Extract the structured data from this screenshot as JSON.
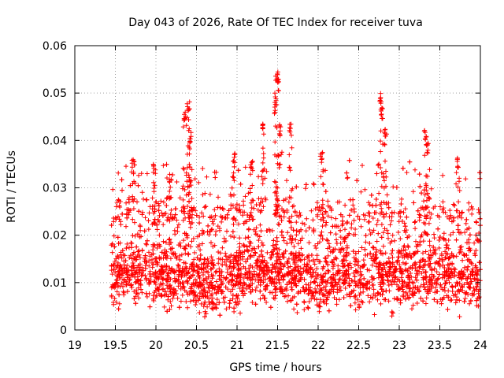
{
  "chart_data": {
    "type": "scatter",
    "title": "Day 043 of 2026, Rate Of TEC Index for receiver tuva",
    "xlabel": "GPS time / hours",
    "ylabel": "ROTI / TECUs",
    "xlim": [
      19,
      24
    ],
    "ylim": [
      0,
      0.06
    ],
    "x_ticks": [
      "19",
      "19.5",
      "20",
      "20.5",
      "21",
      "21.5",
      "22",
      "22.5",
      "23",
      "23.5",
      "24"
    ],
    "y_ticks": [
      "0",
      "0.01",
      "0.02",
      "0.03",
      "0.04",
      "0.05",
      "0.06"
    ],
    "grid": true,
    "marker": "+",
    "color": "#ff0000",
    "x_start": 19.45,
    "x_end": 24.0,
    "baseline_level": [
      [
        19.45,
        0.011
      ],
      [
        19.6,
        0.012
      ],
      [
        19.8,
        0.012
      ],
      [
        20.0,
        0.011
      ],
      [
        20.2,
        0.011
      ],
      [
        20.4,
        0.011
      ],
      [
        20.6,
        0.01
      ],
      [
        20.8,
        0.01
      ],
      [
        21.0,
        0.011
      ],
      [
        21.2,
        0.012
      ],
      [
        21.4,
        0.012
      ],
      [
        21.6,
        0.012
      ],
      [
        21.8,
        0.01
      ],
      [
        22.0,
        0.01
      ],
      [
        22.2,
        0.011
      ],
      [
        22.4,
        0.012
      ],
      [
        22.6,
        0.011
      ],
      [
        22.8,
        0.011
      ],
      [
        23.0,
        0.011
      ],
      [
        23.2,
        0.012
      ],
      [
        23.4,
        0.012
      ],
      [
        23.6,
        0.011
      ],
      [
        23.8,
        0.01
      ],
      [
        24.0,
        0.01
      ]
    ],
    "peaks": [
      {
        "x": 19.72,
        "y": 0.0365
      },
      {
        "x": 19.98,
        "y": 0.035
      },
      {
        "x": 20.18,
        "y": 0.0335
      },
      {
        "x": 20.36,
        "y": 0.0465
      },
      {
        "x": 20.4,
        "y": 0.0485
      },
      {
        "x": 20.42,
        "y": 0.042
      },
      {
        "x": 20.42,
        "y": 0.033
      },
      {
        "x": 20.96,
        "y": 0.0375
      },
      {
        "x": 21.18,
        "y": 0.036
      },
      {
        "x": 21.32,
        "y": 0.0435
      },
      {
        "x": 21.49,
        "y": 0.055
      },
      {
        "x": 21.5,
        "y": 0.053
      },
      {
        "x": 21.48,
        "y": 0.0495
      },
      {
        "x": 21.53,
        "y": 0.0435
      },
      {
        "x": 21.66,
        "y": 0.0435
      },
      {
        "x": 22.04,
        "y": 0.0375
      },
      {
        "x": 22.77,
        "y": 0.0502
      },
      {
        "x": 22.79,
        "y": 0.047
      },
      {
        "x": 22.83,
        "y": 0.043
      },
      {
        "x": 23.32,
        "y": 0.0425
      },
      {
        "x": 23.35,
        "y": 0.0395
      },
      {
        "x": 23.73,
        "y": 0.0365
      }
    ]
  }
}
